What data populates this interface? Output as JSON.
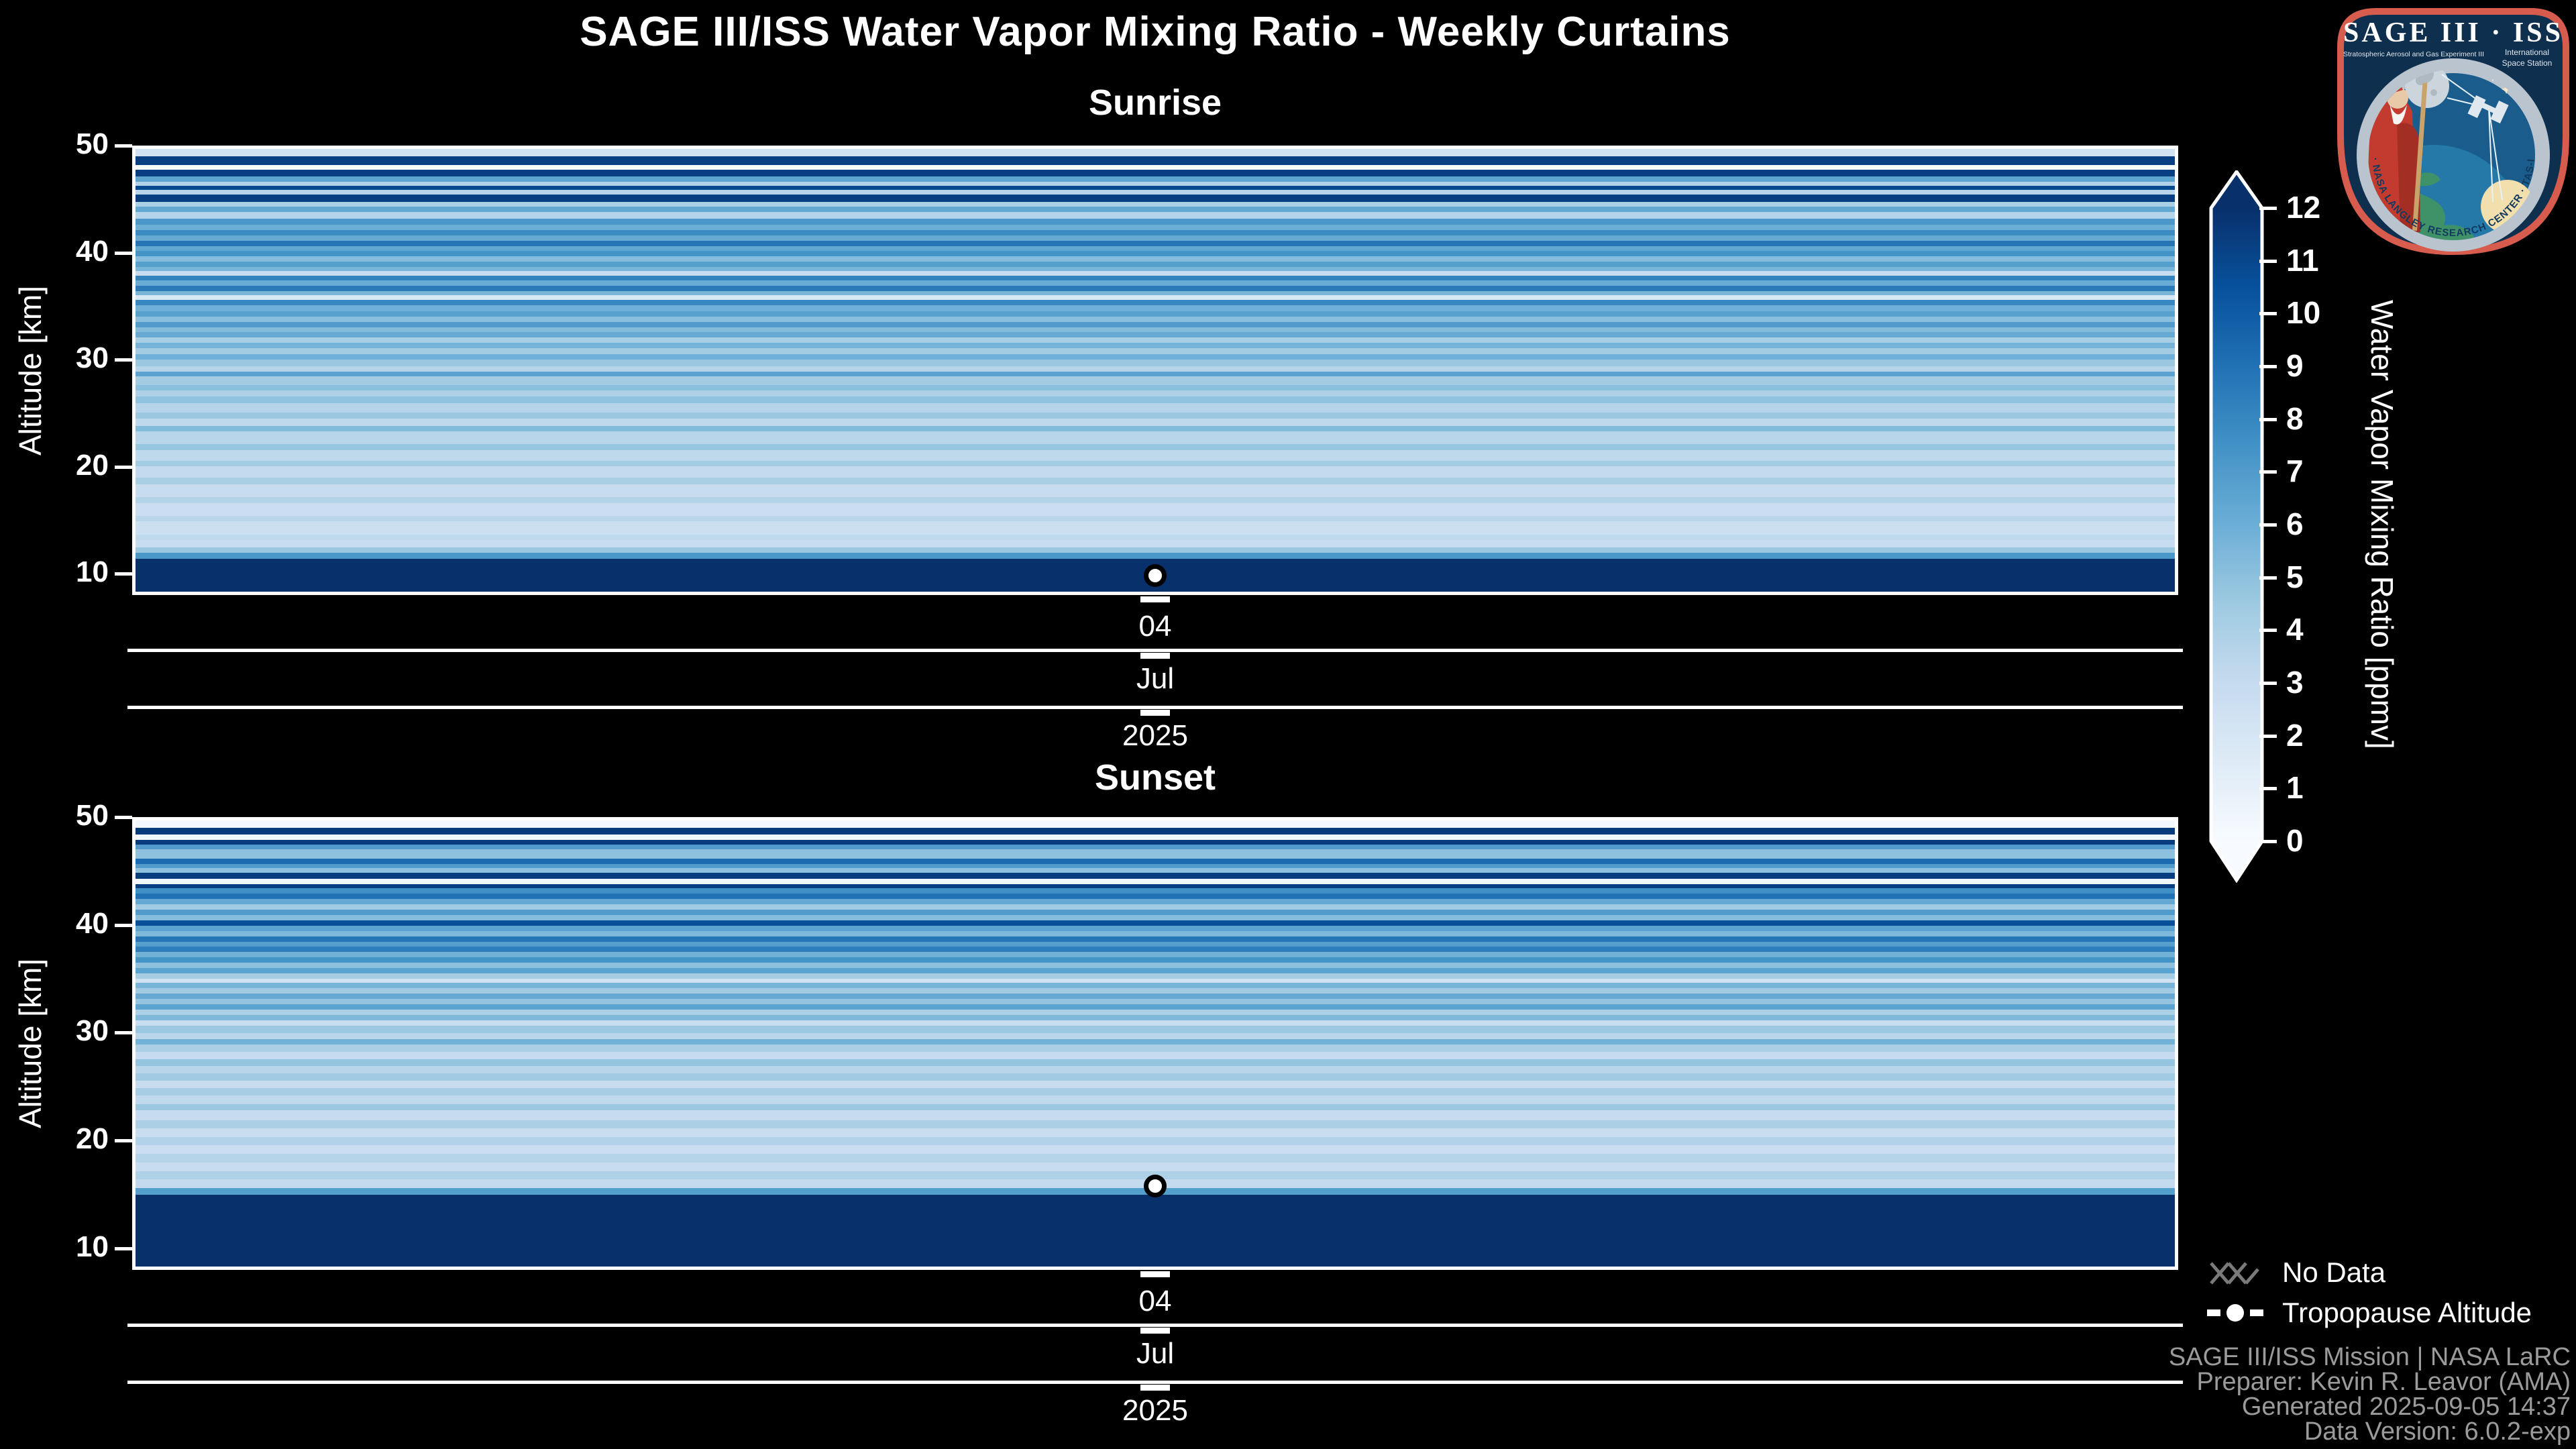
{
  "header": {
    "title": "SAGE III/ISS Water Vapor Mixing Ratio - Weekly Curtains"
  },
  "logo": {
    "title": "SAGE III · ISS",
    "subtitle_left": "Stratospheric Aerosol and Gas Experiment III",
    "subtitle_right_1": "International",
    "subtitle_right_2": "Space Station",
    "ring_text": "BALL · NASA LANGLEY RESEARCH CENTER · TAS-I · ESA"
  },
  "axes": {
    "y_label": "Altitude [km]",
    "y_ticks": [
      50,
      40,
      30,
      20,
      10
    ],
    "y_range": [
      8,
      50
    ]
  },
  "colorbar": {
    "label": "Water Vapor Mixing Ratio [ppmv]",
    "ticks": [
      0,
      1,
      2,
      3,
      4,
      5,
      6,
      7,
      8,
      9,
      10,
      11,
      12
    ],
    "min": 0,
    "max": 12
  },
  "legend": {
    "no_data": "No Data",
    "tropopause": "Tropopause Altitude"
  },
  "footer": {
    "lines": [
      "SAGE III/ISS Mission | NASA LaRC",
      "Preparer: Kevin R. Leavor (AMA)",
      "Generated 2025-09-05 14:37",
      "Data Version: 6.0.2-exp"
    ]
  },
  "colors": {
    "background": "#000000",
    "spine": "#ffffff",
    "footer_text": "#9b9b9b",
    "no_data_hatch": "#7a7a7a",
    "colormap_blues": [
      "#f7fbff",
      "#deebf7",
      "#c6dbef",
      "#9ecae1",
      "#6baed6",
      "#4292c6",
      "#2171b5",
      "#08519c",
      "#08306b"
    ],
    "patch_red": "#d85c4d",
    "patch_navy": "#0e2f4e",
    "patch_sky": "#1a5d8c"
  },
  "chart_data": [
    {
      "type": "heatmap",
      "title": "Sunrise",
      "xlabel_levels": {
        "day": "04",
        "month": "Jul",
        "year": "2025"
      },
      "ylabel": "Altitude [km]",
      "units": "ppmv",
      "value_range": [
        0,
        12
      ],
      "alt_range_km": [
        8,
        50
      ],
      "tropopause_km": 9.8,
      "bands_alt_value": [
        [
          50,
          2.3
        ],
        [
          49.3,
          11.3
        ],
        [
          48.5,
          0.2
        ],
        [
          48,
          11.3
        ],
        [
          47.4,
          6.5
        ],
        [
          46.9,
          3.8
        ],
        [
          46.5,
          10.8
        ],
        [
          46.1,
          3.5
        ],
        [
          45.7,
          11.3
        ],
        [
          45,
          4
        ],
        [
          44.5,
          6.3
        ],
        [
          44,
          3.6
        ],
        [
          43.4,
          7.2
        ],
        [
          42.8,
          6
        ],
        [
          42.3,
          7.8
        ],
        [
          41.8,
          6.2
        ],
        [
          41.3,
          8.8
        ],
        [
          40.8,
          6.4
        ],
        [
          40.3,
          7.4
        ],
        [
          39.8,
          5.2
        ],
        [
          39.3,
          6.8
        ],
        [
          38.8,
          5.6
        ],
        [
          38.4,
          2.9
        ],
        [
          38,
          8.2
        ],
        [
          37.5,
          6.1
        ],
        [
          37,
          8.6
        ],
        [
          36.5,
          5.6
        ],
        [
          36.1,
          1.9
        ],
        [
          35.7,
          8
        ],
        [
          35.2,
          5.9
        ],
        [
          34.6,
          6.7
        ],
        [
          34.1,
          5.1
        ],
        [
          33.6,
          7
        ],
        [
          33.1,
          5.3
        ],
        [
          32.6,
          6.2
        ],
        [
          32.1,
          4.1
        ],
        [
          31.6,
          5.7
        ],
        [
          31.1,
          4.3
        ],
        [
          30.5,
          5.9
        ],
        [
          30,
          4.6
        ],
        [
          29.4,
          3.6
        ],
        [
          28.9,
          6.6
        ],
        [
          28.4,
          4.3
        ],
        [
          27.6,
          5.1
        ],
        [
          27.1,
          3.9
        ],
        [
          26.5,
          4.9
        ],
        [
          25.9,
          3.6
        ],
        [
          25,
          4.6
        ],
        [
          24.4,
          3.3
        ],
        [
          23.7,
          5.3
        ],
        [
          23.2,
          3.5
        ],
        [
          22,
          4.7
        ],
        [
          21.4,
          3.3
        ],
        [
          20.4,
          4.3
        ],
        [
          19.9,
          3.1
        ],
        [
          18.8,
          4.1
        ],
        [
          18.2,
          2.9
        ],
        [
          17,
          3.7
        ],
        [
          16.4,
          2.7
        ],
        [
          15.2,
          3.5
        ],
        [
          14.7,
          2.6
        ],
        [
          13.4,
          3.3
        ],
        [
          12.9,
          2.9
        ],
        [
          12.2,
          4.6
        ],
        [
          11.7,
          7.2
        ],
        [
          11.1,
          12
        ]
      ]
    },
    {
      "type": "heatmap",
      "title": "Sunset",
      "xlabel_levels": {
        "day": "04",
        "month": "Jul",
        "year": "2025"
      },
      "ylabel": "Altitude [km]",
      "units": "ppmv",
      "value_range": [
        0,
        12
      ],
      "alt_range_km": [
        8,
        50
      ],
      "tropopause_km": 15.75,
      "bands_alt_value": [
        [
          50,
          0.3
        ],
        [
          49.3,
          11.5
        ],
        [
          48.7,
          0.3
        ],
        [
          48.2,
          11.5
        ],
        [
          47.7,
          7
        ],
        [
          47.3,
          5
        ],
        [
          46.4,
          9.3
        ],
        [
          45.9,
          7
        ],
        [
          45.5,
          5
        ],
        [
          45.1,
          11.4
        ],
        [
          44.5,
          0.4
        ],
        [
          44,
          11.3
        ],
        [
          43.6,
          7.6
        ],
        [
          43.1,
          9
        ],
        [
          42.6,
          6.2
        ],
        [
          42.1,
          4.4
        ],
        [
          41.6,
          7
        ],
        [
          41.1,
          5.2
        ],
        [
          40.6,
          10.6
        ],
        [
          40.1,
          6.6
        ],
        [
          39.6,
          5.4
        ],
        [
          39.1,
          8.8
        ],
        [
          38.6,
          6.8
        ],
        [
          38.1,
          8.4
        ],
        [
          37.6,
          5.8
        ],
        [
          37.1,
          7.4
        ],
        [
          36.6,
          5
        ],
        [
          36.1,
          6.6
        ],
        [
          35.6,
          4.2
        ],
        [
          35.1,
          2.4
        ],
        [
          34.7,
          5.6
        ],
        [
          34.2,
          4.4
        ],
        [
          33.7,
          6.2
        ],
        [
          33.2,
          4.8
        ],
        [
          32.7,
          6.6
        ],
        [
          32.2,
          4
        ],
        [
          31.7,
          5.4
        ],
        [
          31.2,
          2.8
        ],
        [
          30.7,
          4.6
        ],
        [
          30,
          3.4
        ],
        [
          29.4,
          5.8
        ],
        [
          28.9,
          4
        ],
        [
          28.2,
          3
        ],
        [
          27.5,
          4.8
        ],
        [
          26.9,
          3.5
        ],
        [
          26.2,
          4.4
        ],
        [
          25.5,
          2.9
        ],
        [
          24.8,
          4.2
        ],
        [
          24.1,
          3.2
        ],
        [
          23.3,
          4.6
        ],
        [
          22.7,
          3
        ],
        [
          21.8,
          4
        ],
        [
          21,
          2.8
        ],
        [
          20.2,
          3.8
        ],
        [
          19.4,
          2.7
        ],
        [
          18.6,
          3.6
        ],
        [
          17.8,
          2.9
        ],
        [
          17,
          3.9
        ],
        [
          16.2,
          3.1
        ],
        [
          15.4,
          6.8
        ],
        [
          14.75,
          12
        ]
      ]
    }
  ]
}
